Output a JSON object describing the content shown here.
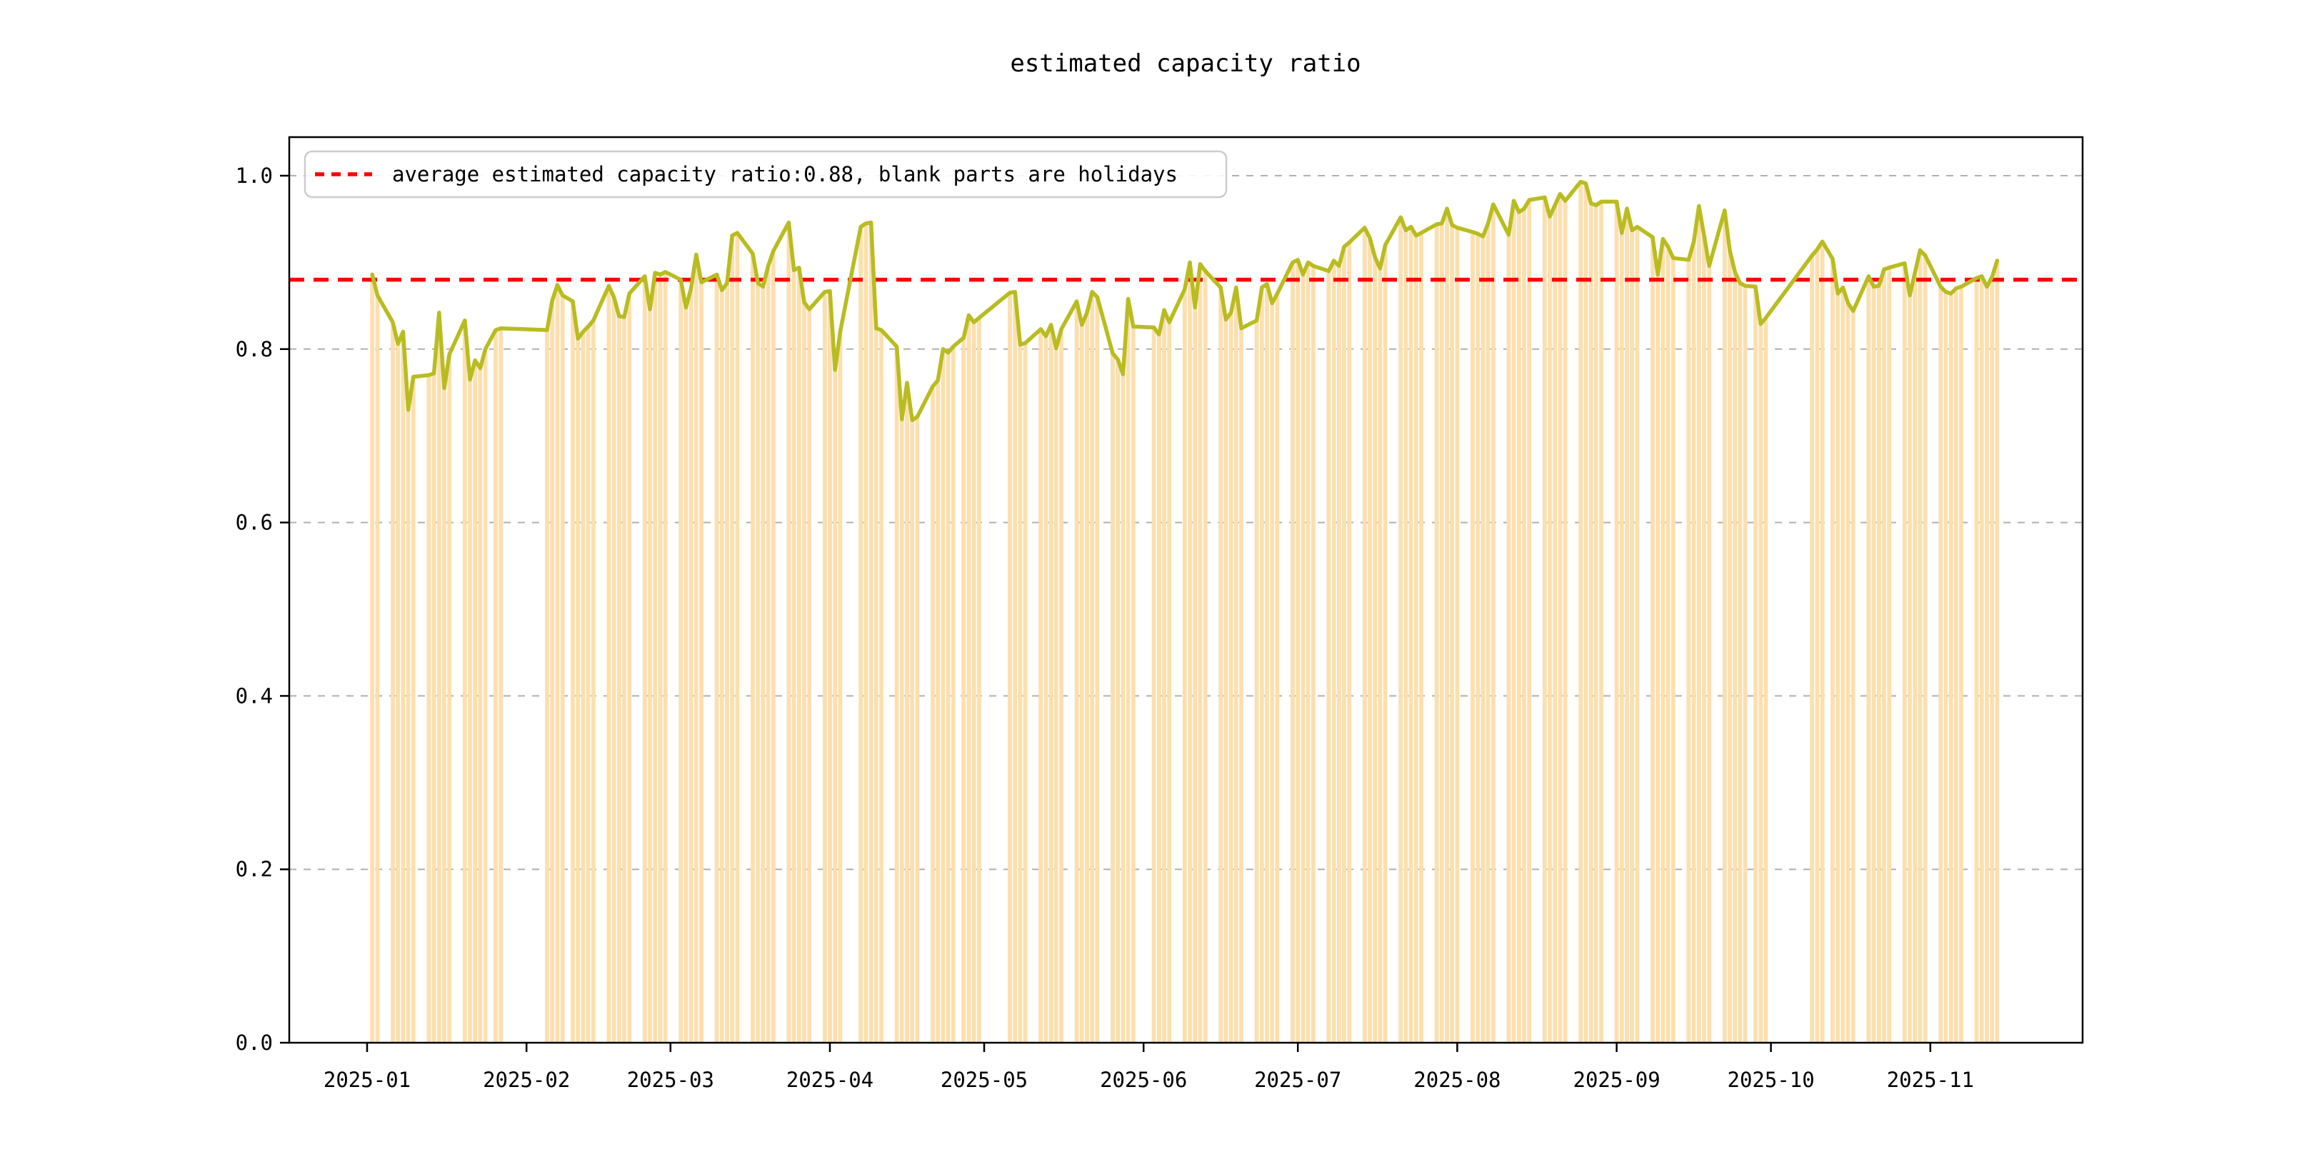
{
  "chart_data": {
    "type": "bar",
    "title": "estimated capacity ratio",
    "legend": {
      "label": "average estimated capacity ratio:0.88, blank parts are holidays",
      "position": "upper-left"
    },
    "average_line": {
      "value": 0.88,
      "color": "#ff0000",
      "style": "dashed"
    },
    "x_axis": {
      "tick_labels": [
        "2025-01",
        "2025-02",
        "2025-03",
        "2025-04",
        "2025-05",
        "2025-06",
        "2025-07",
        "2025-08",
        "2025-09",
        "2025-10",
        "2025-11"
      ],
      "range_days_from_jan1": [
        -15.1,
        333.6
      ]
    },
    "y_axis": {
      "ticks": [
        {
          "label": "0.0",
          "value": 0.0
        },
        {
          "label": "0.2",
          "value": 0.2
        },
        {
          "label": "0.4",
          "value": 0.4
        },
        {
          "label": "0.6",
          "value": 0.6
        },
        {
          "label": "0.8",
          "value": 0.8
        },
        {
          "label": "1.0",
          "value": 1.0
        }
      ],
      "range": [
        0.0,
        1.0445
      ]
    },
    "grid": true,
    "colors": {
      "bar_fill": "#fbdfae",
      "line": "#b9bc20",
      "average": "#ff0000",
      "gridline": "#b0b0b0",
      "spine": "#000000",
      "legend_border": "#cccccc"
    },
    "note": "bars drawn on workdays only; blank parts are holidays; line connects workday values",
    "points": [
      [
        "2025-01-02",
        0.886
      ],
      [
        "2025-01-03",
        0.862
      ],
      [
        "2025-01-06",
        0.831
      ],
      [
        "2025-01-07",
        0.806
      ],
      [
        "2025-01-08",
        0.82
      ],
      [
        "2025-01-09",
        0.73
      ],
      [
        "2025-01-10",
        0.768
      ],
      [
        "2025-01-13",
        0.77
      ],
      [
        "2025-01-14",
        0.772
      ],
      [
        "2025-01-15",
        0.842
      ],
      [
        "2025-01-16",
        0.755
      ],
      [
        "2025-01-17",
        0.794
      ],
      [
        "2025-01-20",
        0.833
      ],
      [
        "2025-01-21",
        0.765
      ],
      [
        "2025-01-22",
        0.787
      ],
      [
        "2025-01-23",
        0.778
      ],
      [
        "2025-01-24",
        0.8
      ],
      [
        "2025-01-26",
        0.822
      ],
      [
        "2025-01-27",
        0.824
      ],
      [
        "2025-02-05",
        0.822
      ],
      [
        "2025-02-06",
        0.856
      ],
      [
        "2025-02-07",
        0.874
      ],
      [
        "2025-02-08",
        0.862
      ],
      [
        "2025-02-10",
        0.855
      ],
      [
        "2025-02-11",
        0.812
      ],
      [
        "2025-02-12",
        0.82
      ],
      [
        "2025-02-13",
        0.826
      ],
      [
        "2025-02-14",
        0.833
      ],
      [
        "2025-02-17",
        0.873
      ],
      [
        "2025-02-18",
        0.86
      ],
      [
        "2025-02-19",
        0.838
      ],
      [
        "2025-02-20",
        0.837
      ],
      [
        "2025-02-21",
        0.864
      ],
      [
        "2025-02-24",
        0.884
      ],
      [
        "2025-02-25",
        0.846
      ],
      [
        "2025-02-26",
        0.888
      ],
      [
        "2025-02-27",
        0.886
      ],
      [
        "2025-02-28",
        0.889
      ],
      [
        "2025-03-03",
        0.88
      ],
      [
        "2025-03-04",
        0.848
      ],
      [
        "2025-03-05",
        0.87
      ],
      [
        "2025-03-06",
        0.909
      ],
      [
        "2025-03-07",
        0.877
      ],
      [
        "2025-03-10",
        0.886
      ],
      [
        "2025-03-11",
        0.868
      ],
      [
        "2025-03-12",
        0.876
      ],
      [
        "2025-03-13",
        0.931
      ],
      [
        "2025-03-14",
        0.934
      ],
      [
        "2025-03-17",
        0.91
      ],
      [
        "2025-03-18",
        0.876
      ],
      [
        "2025-03-19",
        0.872
      ],
      [
        "2025-03-20",
        0.896
      ],
      [
        "2025-03-21",
        0.913
      ],
      [
        "2025-03-24",
        0.946
      ],
      [
        "2025-03-25",
        0.891
      ],
      [
        "2025-03-26",
        0.894
      ],
      [
        "2025-03-27",
        0.854
      ],
      [
        "2025-03-28",
        0.846
      ],
      [
        "2025-03-31",
        0.866
      ],
      [
        "2025-04-01",
        0.867
      ],
      [
        "2025-04-02",
        0.776
      ],
      [
        "2025-04-03",
        0.82
      ],
      [
        "2025-04-07",
        0.941
      ],
      [
        "2025-04-08",
        0.945
      ],
      [
        "2025-04-09",
        0.946
      ],
      [
        "2025-04-10",
        0.824
      ],
      [
        "2025-04-11",
        0.822
      ],
      [
        "2025-04-14",
        0.803
      ],
      [
        "2025-04-15",
        0.719
      ],
      [
        "2025-04-16",
        0.761
      ],
      [
        "2025-04-17",
        0.718
      ],
      [
        "2025-04-18",
        0.722
      ],
      [
        "2025-04-21",
        0.757
      ],
      [
        "2025-04-22",
        0.764
      ],
      [
        "2025-04-23",
        0.8
      ],
      [
        "2025-04-24",
        0.796
      ],
      [
        "2025-04-25",
        0.803
      ],
      [
        "2025-04-27",
        0.813
      ],
      [
        "2025-04-28",
        0.839
      ],
      [
        "2025-04-29",
        0.831
      ],
      [
        "2025-04-30",
        0.836
      ],
      [
        "2025-05-06",
        0.865
      ],
      [
        "2025-05-07",
        0.866
      ],
      [
        "2025-05-08",
        0.805
      ],
      [
        "2025-05-09",
        0.807
      ],
      [
        "2025-05-12",
        0.823
      ],
      [
        "2025-05-13",
        0.815
      ],
      [
        "2025-05-14",
        0.828
      ],
      [
        "2025-05-15",
        0.801
      ],
      [
        "2025-05-16",
        0.823
      ],
      [
        "2025-05-19",
        0.855
      ],
      [
        "2025-05-20",
        0.828
      ],
      [
        "2025-05-21",
        0.842
      ],
      [
        "2025-05-22",
        0.866
      ],
      [
        "2025-05-23",
        0.86
      ],
      [
        "2025-05-26",
        0.795
      ],
      [
        "2025-05-27",
        0.788
      ],
      [
        "2025-05-28",
        0.771
      ],
      [
        "2025-05-29",
        0.858
      ],
      [
        "2025-05-30",
        0.826
      ],
      [
        "2025-06-03",
        0.825
      ],
      [
        "2025-06-04",
        0.817
      ],
      [
        "2025-06-05",
        0.845
      ],
      [
        "2025-06-06",
        0.831
      ],
      [
        "2025-06-09",
        0.869
      ],
      [
        "2025-06-10",
        0.9
      ],
      [
        "2025-06-11",
        0.848
      ],
      [
        "2025-06-12",
        0.898
      ],
      [
        "2025-06-13",
        0.89
      ],
      [
        "2025-06-16",
        0.871
      ],
      [
        "2025-06-17",
        0.834
      ],
      [
        "2025-06-18",
        0.842
      ],
      [
        "2025-06-19",
        0.871
      ],
      [
        "2025-06-20",
        0.824
      ],
      [
        "2025-06-23",
        0.833
      ],
      [
        "2025-06-24",
        0.871
      ],
      [
        "2025-06-25",
        0.875
      ],
      [
        "2025-06-26",
        0.853
      ],
      [
        "2025-06-27",
        0.864
      ],
      [
        "2025-06-30",
        0.9
      ],
      [
        "2025-07-01",
        0.903
      ],
      [
        "2025-07-02",
        0.886
      ],
      [
        "2025-07-03",
        0.9
      ],
      [
        "2025-07-04",
        0.896
      ],
      [
        "2025-07-07",
        0.89
      ],
      [
        "2025-07-08",
        0.902
      ],
      [
        "2025-07-09",
        0.896
      ],
      [
        "2025-07-10",
        0.918
      ],
      [
        "2025-07-11",
        0.923
      ],
      [
        "2025-07-14",
        0.94
      ],
      [
        "2025-07-15",
        0.928
      ],
      [
        "2025-07-16",
        0.906
      ],
      [
        "2025-07-17",
        0.893
      ],
      [
        "2025-07-18",
        0.92
      ],
      [
        "2025-07-21",
        0.952
      ],
      [
        "2025-07-22",
        0.937
      ],
      [
        "2025-07-23",
        0.941
      ],
      [
        "2025-07-24",
        0.931
      ],
      [
        "2025-07-25",
        0.934
      ],
      [
        "2025-07-28",
        0.944
      ],
      [
        "2025-07-29",
        0.945
      ],
      [
        "2025-07-30",
        0.962
      ],
      [
        "2025-07-31",
        0.943
      ],
      [
        "2025-08-01",
        0.94
      ],
      [
        "2025-08-04",
        0.935
      ],
      [
        "2025-08-05",
        0.933
      ],
      [
        "2025-08-06",
        0.93
      ],
      [
        "2025-08-07",
        0.945
      ],
      [
        "2025-08-08",
        0.967
      ],
      [
        "2025-08-11",
        0.932
      ],
      [
        "2025-08-12",
        0.971
      ],
      [
        "2025-08-13",
        0.958
      ],
      [
        "2025-08-14",
        0.962
      ],
      [
        "2025-08-15",
        0.972
      ],
      [
        "2025-08-18",
        0.975
      ],
      [
        "2025-08-19",
        0.953
      ],
      [
        "2025-08-20",
        0.966
      ],
      [
        "2025-08-21",
        0.979
      ],
      [
        "2025-08-22",
        0.971
      ],
      [
        "2025-08-25",
        0.993
      ],
      [
        "2025-08-26",
        0.991
      ],
      [
        "2025-08-27",
        0.968
      ],
      [
        "2025-08-28",
        0.966
      ],
      [
        "2025-08-29",
        0.97
      ],
      [
        "2025-09-01",
        0.97
      ],
      [
        "2025-09-02",
        0.934
      ],
      [
        "2025-09-03",
        0.962
      ],
      [
        "2025-09-04",
        0.937
      ],
      [
        "2025-09-05",
        0.941
      ],
      [
        "2025-09-08",
        0.929
      ],
      [
        "2025-09-09",
        0.886
      ],
      [
        "2025-09-10",
        0.927
      ],
      [
        "2025-09-11",
        0.918
      ],
      [
        "2025-09-12",
        0.905
      ],
      [
        "2025-09-15",
        0.903
      ],
      [
        "2025-09-16",
        0.924
      ],
      [
        "2025-09-17",
        0.965
      ],
      [
        "2025-09-18",
        0.931
      ],
      [
        "2025-09-19",
        0.896
      ],
      [
        "2025-09-22",
        0.96
      ],
      [
        "2025-09-23",
        0.914
      ],
      [
        "2025-09-24",
        0.889
      ],
      [
        "2025-09-25",
        0.876
      ],
      [
        "2025-09-26",
        0.873
      ],
      [
        "2025-09-28",
        0.872
      ],
      [
        "2025-09-29",
        0.829
      ],
      [
        "2025-09-30",
        0.836
      ],
      [
        "2025-10-09",
        0.908
      ],
      [
        "2025-10-10",
        0.915
      ],
      [
        "2025-10-11",
        0.924
      ],
      [
        "2025-10-13",
        0.904
      ],
      [
        "2025-10-14",
        0.864
      ],
      [
        "2025-10-15",
        0.871
      ],
      [
        "2025-10-16",
        0.853
      ],
      [
        "2025-10-17",
        0.844
      ],
      [
        "2025-10-20",
        0.884
      ],
      [
        "2025-10-21",
        0.872
      ],
      [
        "2025-10-22",
        0.873
      ],
      [
        "2025-10-23",
        0.892
      ],
      [
        "2025-10-24",
        0.894
      ],
      [
        "2025-10-27",
        0.899
      ],
      [
        "2025-10-28",
        0.862
      ],
      [
        "2025-10-29",
        0.888
      ],
      [
        "2025-10-30",
        0.914
      ],
      [
        "2025-10-31",
        0.908
      ],
      [
        "2025-11-03",
        0.872
      ],
      [
        "2025-11-04",
        0.866
      ],
      [
        "2025-11-05",
        0.864
      ],
      [
        "2025-11-06",
        0.87
      ],
      [
        "2025-11-07",
        0.872
      ],
      [
        "2025-11-10",
        0.882
      ],
      [
        "2025-11-11",
        0.884
      ],
      [
        "2025-11-12",
        0.872
      ],
      [
        "2025-11-13",
        0.883
      ],
      [
        "2025-11-14",
        0.902
      ]
    ]
  }
}
